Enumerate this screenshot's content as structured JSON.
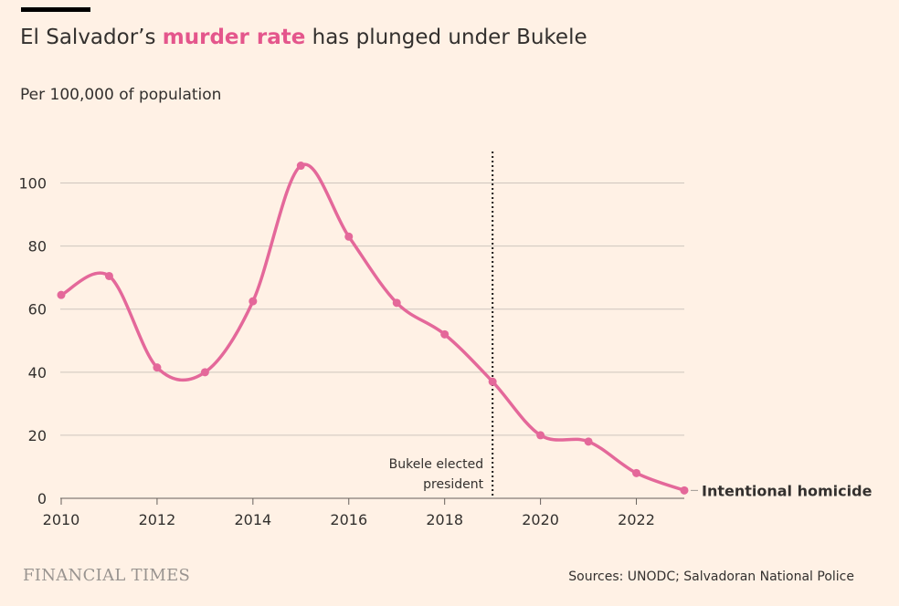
{
  "title": {
    "prefix": "El Salvador’s ",
    "highlight": "murder rate",
    "suffix": " has plunged under Bukele"
  },
  "subtitle": "Per 100,000 of population",
  "footer": {
    "brand": "FINANCIAL TIMES",
    "source": "Sources: UNODC; Salvadoran National Police"
  },
  "colors": {
    "background": "#FFF1E5",
    "line": "#E4689A",
    "highlight": "#E4568C",
    "grid": "#CEC6BE",
    "text": "#33302E"
  },
  "chart_data": {
    "type": "line",
    "title": "El Salvador’s murder rate has plunged under Bukele",
    "ylabel": "Per 100,000 of population",
    "xlabel": "",
    "xlim": [
      2010,
      2023
    ],
    "ylim": [
      0,
      110
    ],
    "x_ticks": [
      2010,
      2012,
      2014,
      2016,
      2018,
      2020,
      2022
    ],
    "y_ticks": [
      0,
      20,
      40,
      60,
      80,
      100
    ],
    "grid": true,
    "series": [
      {
        "name": "Intentional homicide",
        "x": [
          2010,
          2011,
          2012,
          2013,
          2014,
          2015,
          2016,
          2017,
          2018,
          2019,
          2020,
          2021,
          2022,
          2023
        ],
        "values": [
          64.5,
          70.5,
          41.5,
          40,
          62.5,
          105.5,
          83,
          62,
          52,
          37,
          20,
          18,
          8,
          2.5
        ]
      }
    ],
    "annotations": [
      {
        "x": 2019,
        "label_lines": [
          "Bukele elected",
          "president"
        ]
      }
    ]
  }
}
